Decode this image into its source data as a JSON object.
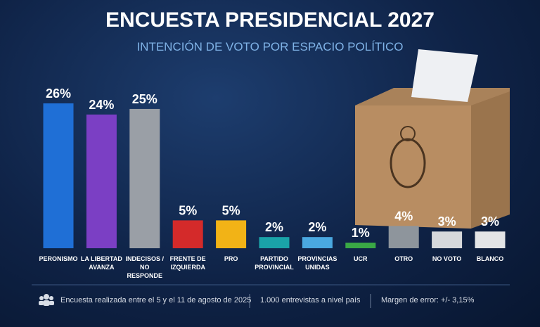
{
  "chart_data": {
    "type": "bar",
    "title": "ENCUESTA PRESIDENCIAL 2027",
    "subtitle": "INTENCIÓN DE VOTO POR ESPACIO POLÍTICO",
    "categories": [
      "PERONISMO",
      "LA LIBERTAD\nAVANZA",
      "INDECISOS /\nNO RESPONDE",
      "FRENTE DE\nIZQUIERDA",
      "PRO",
      "PARTIDO\nPROVINCIAL",
      "PROVINCIAS\nUNIDAS",
      "UCR",
      "OTRO",
      "NO VOTO",
      "BLANCO"
    ],
    "values": [
      26,
      24,
      25,
      5,
      5,
      2,
      2,
      1,
      4,
      3,
      3
    ],
    "value_labels": [
      "26%",
      "24%",
      "25%",
      "5%",
      "5%",
      "2%",
      "2%",
      "1%",
      "4%",
      "3%",
      "3%"
    ],
    "colors": [
      "#1f6fd6",
      "#7b3fc4",
      "#9a9fa6",
      "#d42a2a",
      "#f2b316",
      "#1aa3a8",
      "#4aa8e0",
      "#3aa845",
      "#8e959c",
      "#d6d8db",
      "#e3e4e6"
    ],
    "footer": [
      "Encuesta realizada entre el 5 y el 11 de agosto de 2025",
      "1.000 entrevistas a nivel país",
      "Margen de error: +/- 3,15%"
    ]
  }
}
